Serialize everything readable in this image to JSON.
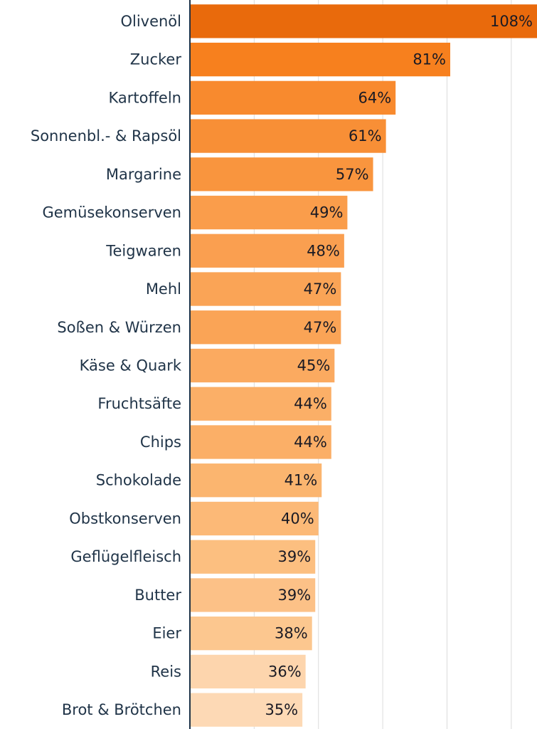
{
  "chart_data": {
    "type": "bar",
    "orientation": "horizontal",
    "categories": [
      "Olivenöl",
      "Zucker",
      "Kartoffeln",
      "Sonnenbl.- & Rapsöl",
      "Margarine",
      "Gemüsekonserven",
      "Teigwaren",
      "Mehl",
      "Soßen & Würzen",
      "Käse & Quark",
      "Fruchtsäfte",
      "Chips",
      "Schokolade",
      "Obstkonserven",
      "Geflügelfleisch",
      "Butter",
      "Eier",
      "Reis",
      "Brot & Brötchen"
    ],
    "values": [
      108,
      81,
      64,
      61,
      57,
      49,
      48,
      47,
      47,
      45,
      44,
      44,
      41,
      40,
      39,
      39,
      38,
      36,
      35
    ],
    "value_labels": [
      "108%",
      "81%",
      "64%",
      "61%",
      "57%",
      "49%",
      "48%",
      "47%",
      "47%",
      "45%",
      "44%",
      "44%",
      "41%",
      "40%",
      "39%",
      "39%",
      "38%",
      "36%",
      "35%"
    ],
    "colors": [
      "#e96a0c",
      "#f7801e",
      "#f88a2e",
      "#f88f36",
      "#f9953e",
      "#fa9d4b",
      "#fa9f50",
      "#faa456",
      "#faa456",
      "#fbaa60",
      "#fbaf67",
      "#fbaf67",
      "#fbb56f",
      "#fcb977",
      "#fcbf80",
      "#fcc187",
      "#fcc78f",
      "#fdd5ad",
      "#fdd9b5"
    ],
    "xlim": [
      0,
      108
    ],
    "xticks": [
      0,
      20,
      40,
      60,
      80,
      100
    ],
    "grid": true
  }
}
